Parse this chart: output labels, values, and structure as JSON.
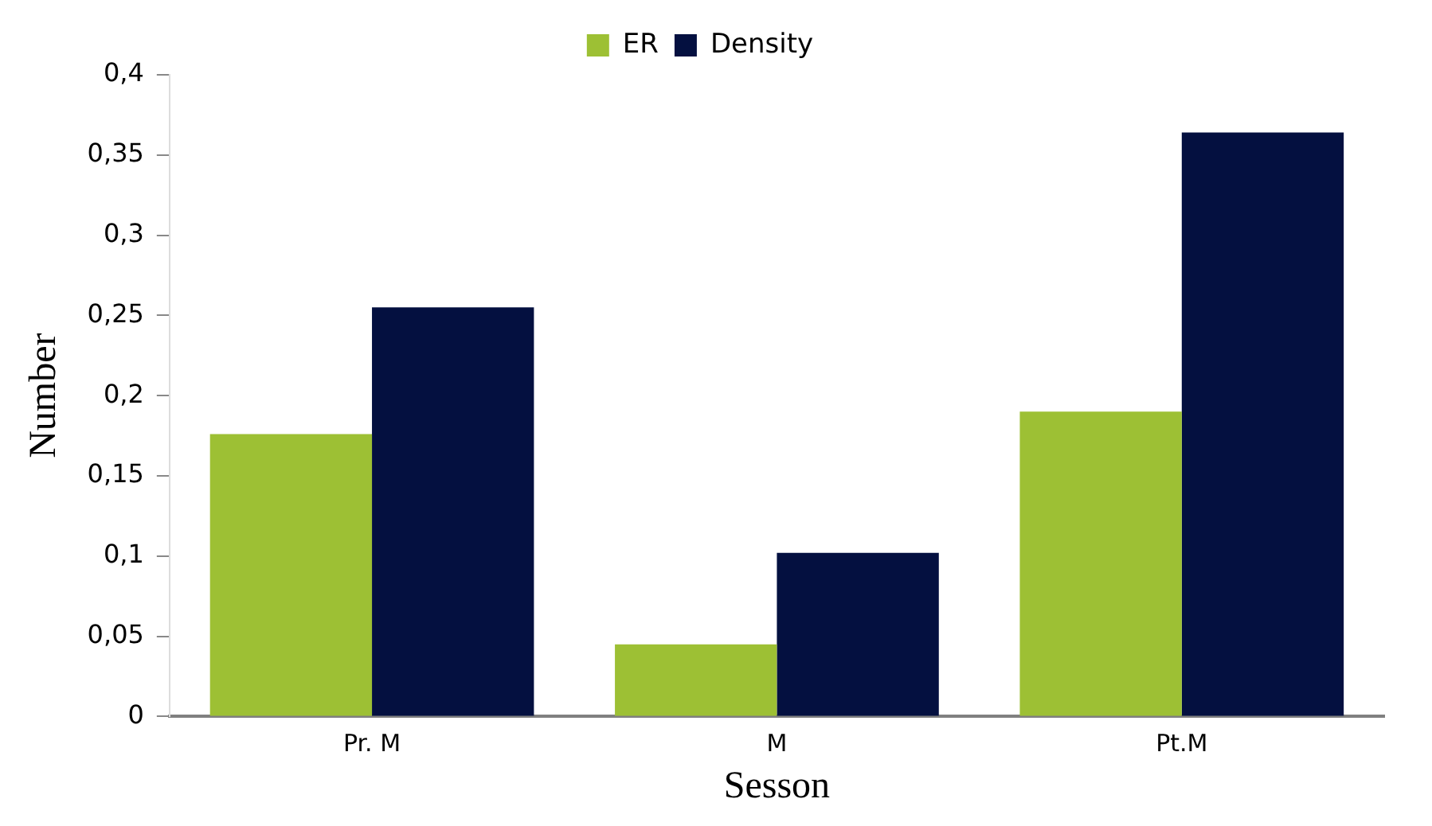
{
  "chart_data": {
    "type": "bar",
    "xlabel": "Sesson",
    "ylabel": "Number",
    "categories": [
      "Pr. M",
      "M",
      "Pt.M"
    ],
    "series": [
      {
        "name": "ER",
        "color": "#9dc034",
        "values": [
          0.176,
          0.045,
          0.19
        ]
      },
      {
        "name": "Density",
        "color": "#041040",
        "values": [
          0.255,
          0.102,
          0.364
        ]
      }
    ],
    "ylim": [
      0,
      0.4
    ],
    "yticks": [
      {
        "value": 0,
        "label": "0"
      },
      {
        "value": 0.05,
        "label": "0,05"
      },
      {
        "value": 0.1,
        "label": "0,1"
      },
      {
        "value": 0.15,
        "label": "0,15"
      },
      {
        "value": 0.2,
        "label": "0,2"
      },
      {
        "value": 0.25,
        "label": "0,25"
      },
      {
        "value": 0.3,
        "label": "0,3"
      },
      {
        "value": 0.35,
        "label": "0,35"
      },
      {
        "value": 0.4,
        "label": "0,4"
      }
    ],
    "grid": false,
    "legend": "top"
  }
}
